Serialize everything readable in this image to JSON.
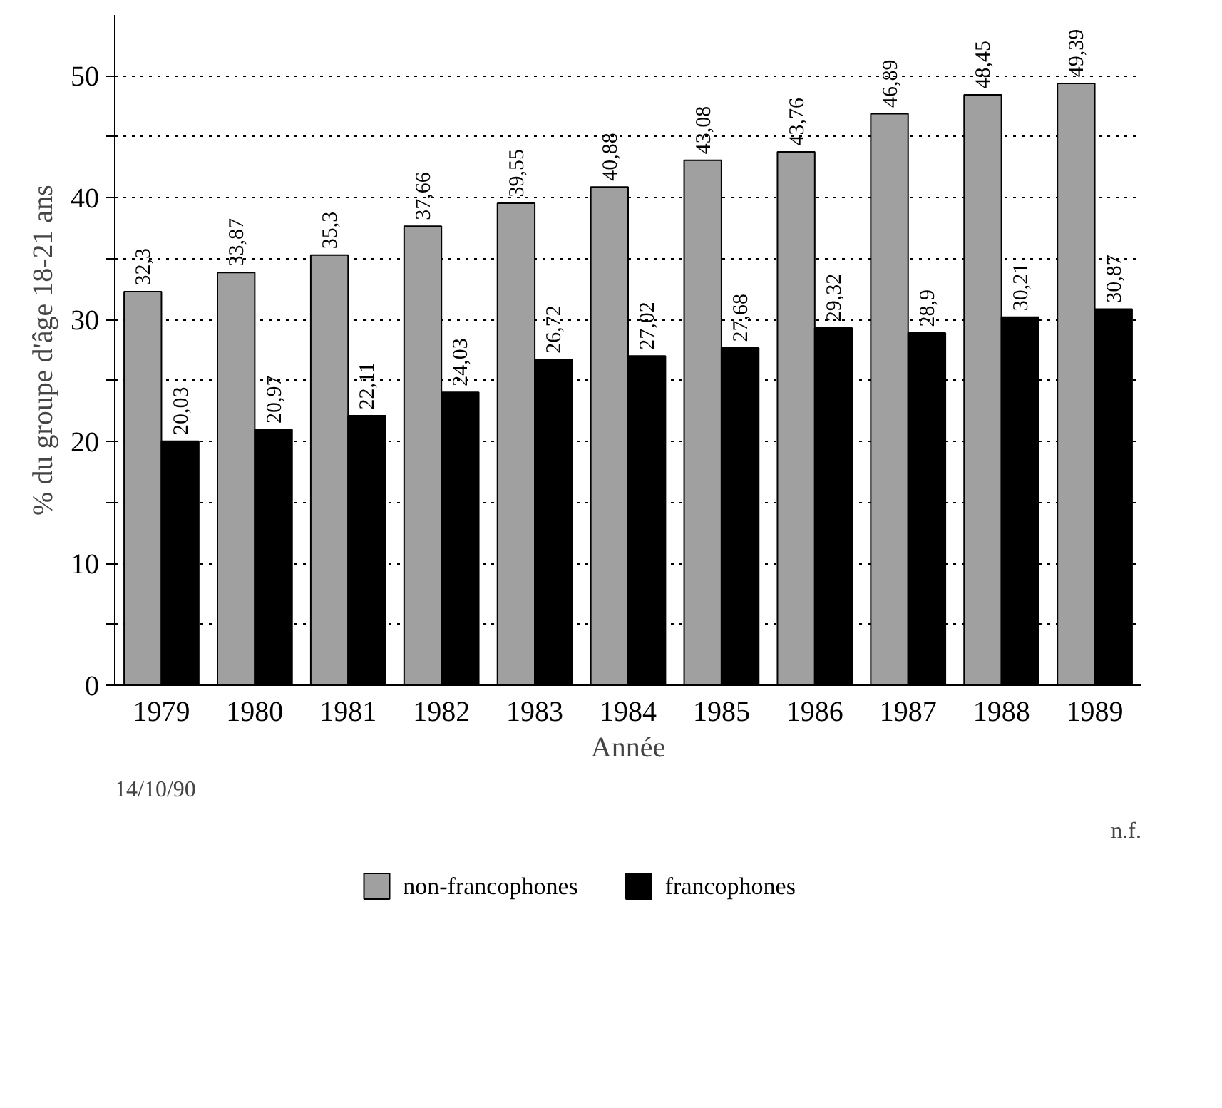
{
  "chart_data": {
    "type": "bar",
    "xlabel": "Année",
    "ylabel": "% du groupe d'âge 18-21 ans",
    "categories": [
      "1979",
      "1980",
      "1981",
      "1982",
      "1983",
      "1984",
      "1985",
      "1986",
      "1987",
      "1988",
      "1989"
    ],
    "series": [
      {
        "name": "non-francophones",
        "color": "#a0a0a0",
        "values": [
          32.3,
          33.87,
          35.3,
          37.66,
          39.55,
          40.88,
          43.08,
          43.76,
          46.89,
          48.45,
          49.39
        ],
        "value_labels": [
          "32,3",
          "33,87",
          "35,3",
          "37,66",
          "39,55",
          "40,88",
          "43,08",
          "43,76",
          "46,89",
          "48,45",
          "49,39"
        ]
      },
      {
        "name": "francophones",
        "color": "#000000",
        "values": [
          20.03,
          20.97,
          22.11,
          24.03,
          26.72,
          27.02,
          27.68,
          29.32,
          28.9,
          30.21,
          30.87
        ],
        "value_labels": [
          "20,03",
          "20,97",
          "22,11",
          "24,03",
          "26,72",
          "27,02",
          "27,68",
          "29,32",
          "28,9",
          "30,21",
          "30,87"
        ]
      }
    ],
    "ylim": [
      0,
      55
    ],
    "yticks": [
      0,
      {
        "value": 5,
        "label": null
      },
      10,
      {
        "value": 15,
        "label": null
      },
      20,
      {
        "value": 25,
        "label": null
      },
      30,
      {
        "value": 35,
        "label": null
      },
      40,
      {
        "value": 45,
        "label": null
      },
      50
    ],
    "grid": "y",
    "legend": "bottom",
    "annotations": [
      "14/10/90",
      "n.f."
    ]
  }
}
